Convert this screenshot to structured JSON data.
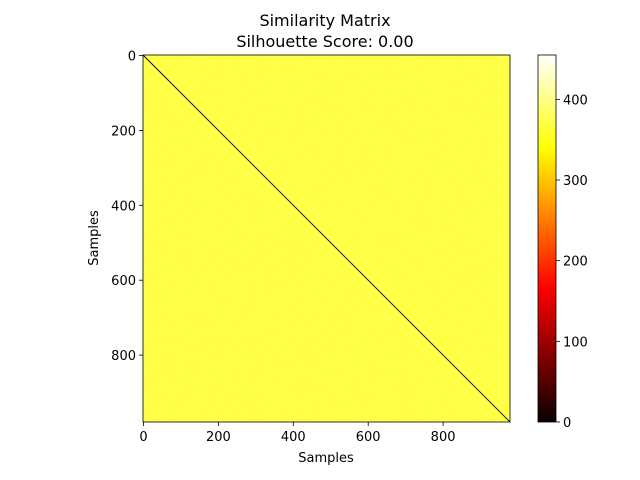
{
  "chart_data": {
    "type": "heatmap",
    "title": "Similarity Matrix",
    "subtitle": "Silhouette Score: 0.00",
    "xlabel": "Samples",
    "ylabel": "Samples",
    "n_samples": 980,
    "x_ticks": [
      0,
      200,
      400,
      600,
      800
    ],
    "y_ticks": [
      0,
      200,
      400,
      600,
      800
    ],
    "xlim": [
      0,
      980
    ],
    "ylim": [
      980,
      0
    ],
    "matrix_description_values": {
      "off_diagonal": 440,
      "diagonal": 0
    },
    "colormap": "hot",
    "colorbar": {
      "vmin": 0,
      "vmax": 455,
      "ticks": [
        0,
        100,
        200,
        300,
        400
      ]
    },
    "grid": false,
    "legend": "none"
  }
}
